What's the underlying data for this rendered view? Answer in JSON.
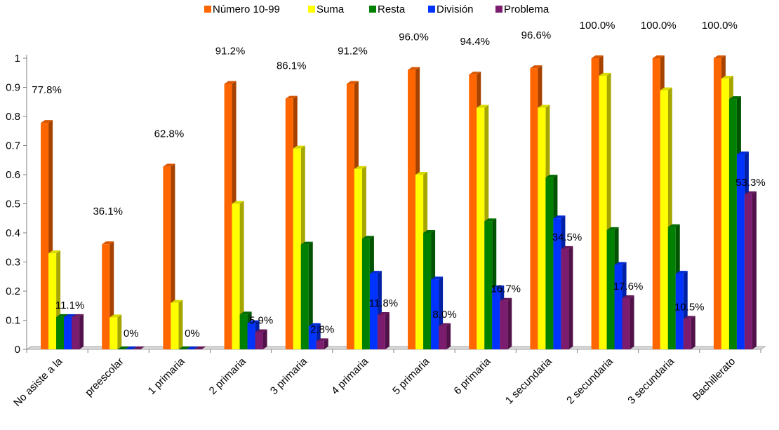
{
  "chart_data": {
    "type": "bar",
    "categories": [
      "No asiste a la",
      "preescolar",
      "1 primaria",
      "2 primaria",
      "3 primaria",
      "4 primaria",
      "5 primaria",
      "6 primaria",
      "1 secundaria",
      "2 secundaria",
      "3 secundaria",
      "Bachillerato"
    ],
    "series": [
      {
        "name": "Número 10-99",
        "color": "#FF6600",
        "values": [
          0.778,
          0.361,
          0.628,
          0.912,
          0.861,
          0.912,
          0.96,
          0.944,
          0.966,
          1.0,
          1.0,
          1.0
        ]
      },
      {
        "name": "Suma",
        "color": "#FFFF00",
        "values": [
          0.33,
          0.11,
          0.16,
          0.5,
          0.69,
          0.62,
          0.6,
          0.83,
          0.83,
          0.94,
          0.89,
          0.93
        ]
      },
      {
        "name": "Resta",
        "color": "#008000",
        "values": [
          0.111,
          0.0,
          0.0,
          0.12,
          0.36,
          0.38,
          0.4,
          0.44,
          0.59,
          0.41,
          0.42,
          0.86
        ]
      },
      {
        "name": "División",
        "color": "#0033FF",
        "values": [
          0.111,
          0.0,
          0.0,
          0.09,
          0.08,
          0.26,
          0.24,
          0.21,
          0.45,
          0.29,
          0.26,
          0.67
        ]
      },
      {
        "name": "Problema",
        "color": "#7B1C6E",
        "values": [
          0.111,
          0.0,
          0.0,
          0.059,
          0.028,
          0.118,
          0.08,
          0.167,
          0.345,
          0.176,
          0.105,
          0.533
        ]
      }
    ],
    "data_labels": [
      {
        "category": 0,
        "series": 0,
        "text": "77.8%"
      },
      {
        "category": 0,
        "series": 3,
        "text": "11.1%"
      },
      {
        "category": 1,
        "series": 0,
        "text": "36.1%"
      },
      {
        "category": 1,
        "series": 3,
        "text": "0%"
      },
      {
        "category": 2,
        "series": 0,
        "text": "62.8%"
      },
      {
        "category": 2,
        "series": 3,
        "text": "0%"
      },
      {
        "category": 3,
        "series": 0,
        "text": "91.2%"
      },
      {
        "category": 3,
        "series": 4,
        "text": "5.9%"
      },
      {
        "category": 4,
        "series": 0,
        "text": "86.1%"
      },
      {
        "category": 4,
        "series": 4,
        "text": "2.8%"
      },
      {
        "category": 5,
        "series": 0,
        "text": "91.2%"
      },
      {
        "category": 5,
        "series": 4,
        "text": "11.8%"
      },
      {
        "category": 6,
        "series": 0,
        "text": "96.0%"
      },
      {
        "category": 6,
        "series": 4,
        "text": "8.0%"
      },
      {
        "category": 7,
        "series": 0,
        "text": "94.4%"
      },
      {
        "category": 7,
        "series": 4,
        "text": "16.7%"
      },
      {
        "category": 8,
        "series": 0,
        "text": "96.6%"
      },
      {
        "category": 8,
        "series": 4,
        "text": "34.5%"
      },
      {
        "category": 9,
        "series": 0,
        "text": "100.0%"
      },
      {
        "category": 9,
        "series": 4,
        "text": "17.6%"
      },
      {
        "category": 10,
        "series": 0,
        "text": "100.0%"
      },
      {
        "category": 10,
        "series": 4,
        "text": "10.5%"
      },
      {
        "category": 11,
        "series": 0,
        "text": "100.0%"
      },
      {
        "category": 11,
        "series": 4,
        "text": "53.3%"
      }
    ],
    "yticks": [
      "0",
      "0.1",
      "0.2",
      "0.3",
      "0.4",
      "0.5",
      "0.6",
      "0.7",
      "0.8",
      "0.9",
      "1"
    ],
    "ylim": [
      0,
      1
    ],
    "legend_position": "top",
    "style": "3d-clustered-column",
    "grid": false
  }
}
